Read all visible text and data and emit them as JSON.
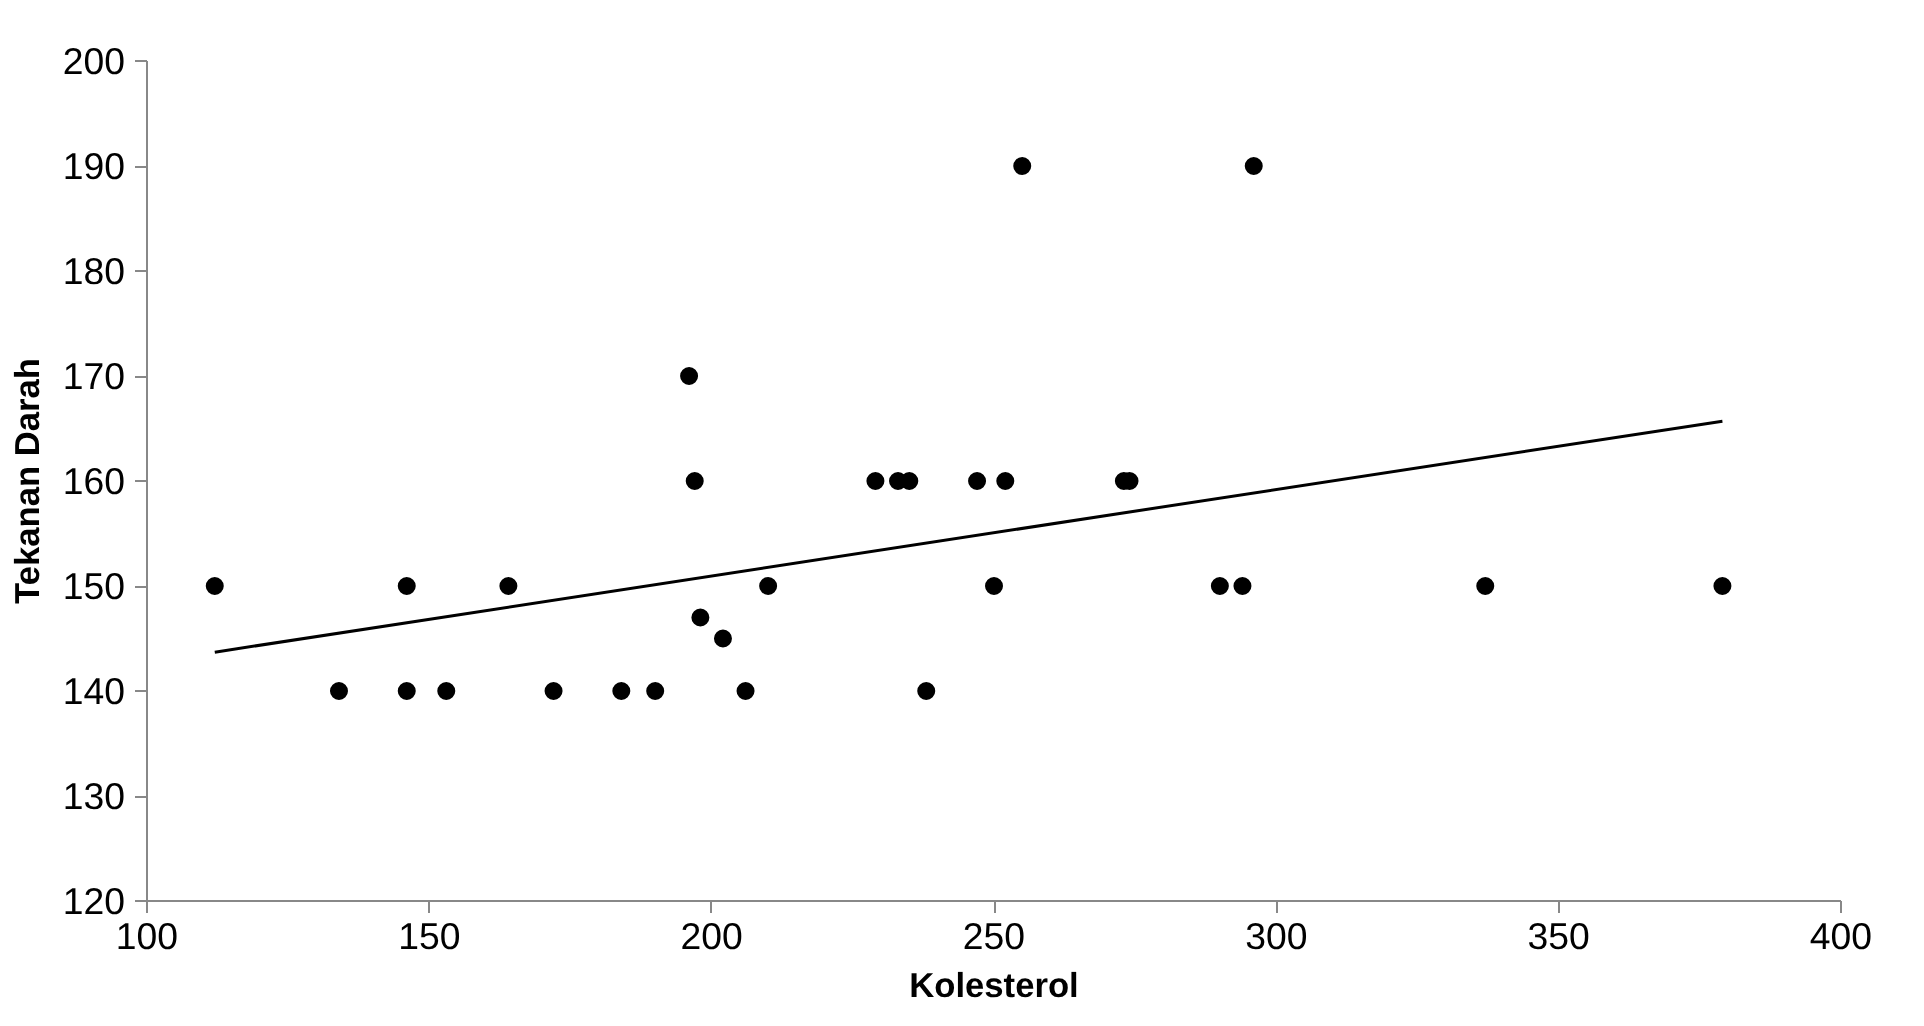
{
  "chart_data": {
    "type": "scatter",
    "xlabel": "Kolesterol",
    "ylabel": "Tekanan Darah",
    "xlim": [
      100,
      400
    ],
    "xticks": [
      100,
      150,
      200,
      250,
      300,
      350,
      400
    ],
    "ylim": [
      120,
      200
    ],
    "yticks": [
      120,
      130,
      140,
      150,
      160,
      170,
      180,
      190,
      200
    ],
    "grid": false,
    "marker": "circle",
    "series": [
      {
        "color": "#000000",
        "x": [
          112,
          134,
          146,
          146,
          153,
          164,
          172,
          184,
          190,
          196,
          197,
          198,
          202,
          206,
          210,
          229,
          233,
          235,
          238,
          247,
          250,
          252,
          255,
          273,
          274,
          290,
          294,
          296,
          337,
          379
        ],
        "values": [
          150,
          140,
          150,
          140,
          140,
          150,
          140,
          140,
          140,
          170,
          160,
          147,
          145,
          140,
          150,
          160,
          160,
          160,
          140,
          160,
          150,
          160,
          190,
          160,
          160,
          150,
          150,
          190,
          150,
          150
        ]
      },
      {
        "type": "line",
        "color": "#000000",
        "line_style": "solid",
        "marker": "none",
        "x": [
          112,
          379
        ],
        "values": [
          143.7,
          165.7
        ]
      }
    ]
  }
}
